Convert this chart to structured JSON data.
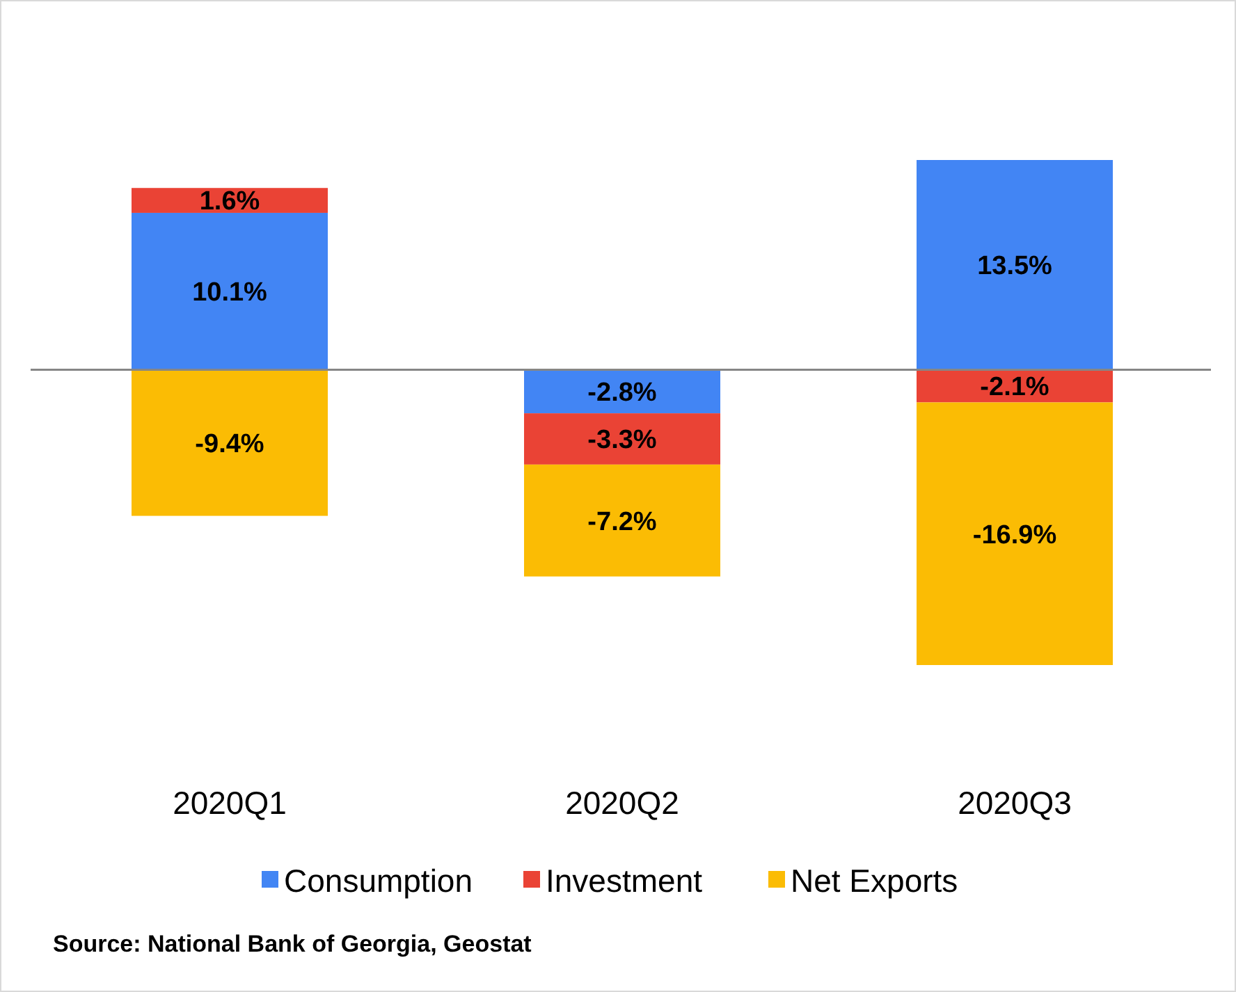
{
  "chart_data": {
    "type": "bar",
    "stacked": true,
    "categories": [
      "2020Q1",
      "2020Q2",
      "2020Q3"
    ],
    "series": [
      {
        "name": "Consumption",
        "color": "#4285f4",
        "values": [
          10.1,
          -2.8,
          13.5
        ],
        "value_labels": [
          "10.1%",
          "-2.8%",
          "13.5%"
        ]
      },
      {
        "name": "Investment",
        "color": "#ea4335",
        "values": [
          1.6,
          -3.3,
          -2.1
        ],
        "value_labels": [
          "1.6%",
          "-3.3%",
          "-2.1%"
        ]
      },
      {
        "name": "Net Exports",
        "color": "#fbbc04",
        "values": [
          -9.4,
          -7.2,
          -16.9
        ],
        "value_labels": [
          "-9.4%",
          "-7.2%",
          "-16.9%"
        ]
      }
    ],
    "legend": "bottom",
    "annotations": [
      "Source: National Bank of Georgia, Geostat"
    ]
  }
}
